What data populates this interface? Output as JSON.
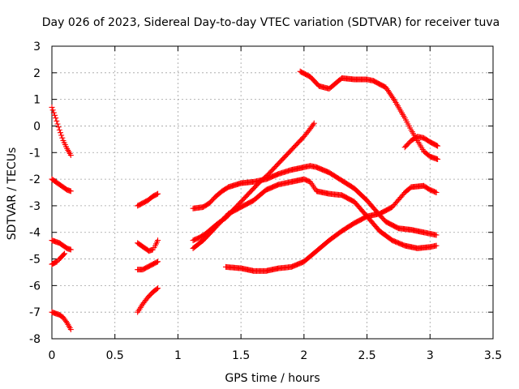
{
  "chart_data": {
    "type": "scatter",
    "title": "Day 026 of 2023, Sidereal Day-to-day VTEC variation (SDTVAR) for receiver tuva",
    "xlabel": "GPS time / hours",
    "ylabel": "SDTVAR / TECUs",
    "xlim": [
      0,
      3.5
    ],
    "ylim": [
      -8,
      3
    ],
    "xticks": [
      0,
      0.5,
      1,
      1.5,
      2,
      2.5,
      3,
      3.5
    ],
    "xtick_labels": [
      "0",
      "0.5",
      "1",
      "1.5",
      "2",
      "2.5",
      "3",
      "3.5"
    ],
    "yticks": [
      -8,
      -7,
      -6,
      -5,
      -4,
      -3,
      -2,
      -1,
      0,
      1,
      2,
      3
    ],
    "ytick_labels": [
      "-8",
      "-7",
      "-6",
      "-5",
      "-4",
      "-3",
      "-2",
      "-1",
      "0",
      "1",
      "2",
      "3"
    ],
    "grid": true,
    "marker": "+",
    "color": "#ff0000",
    "series": [
      {
        "name": "s1",
        "x": [
          0.0,
          0.03,
          0.06,
          0.09,
          0.12,
          0.15
        ],
        "y": [
          0.7,
          0.3,
          -0.15,
          -0.55,
          -0.85,
          -1.1
        ]
      },
      {
        "name": "s2",
        "x": [
          0.0,
          0.03,
          0.06,
          0.09,
          0.12,
          0.15
        ],
        "y": [
          -2.0,
          -2.1,
          -2.2,
          -2.3,
          -2.4,
          -2.45
        ]
      },
      {
        "name": "s3",
        "x": [
          0.0,
          0.03,
          0.06,
          0.09,
          0.12,
          0.15
        ],
        "y": [
          -4.3,
          -4.35,
          -4.4,
          -4.5,
          -4.6,
          -4.65
        ]
      },
      {
        "name": "s4",
        "x": [
          0.0,
          0.02,
          0.04,
          0.06,
          0.08,
          0.1
        ],
        "y": [
          -5.2,
          -5.15,
          -5.1,
          -5.0,
          -4.9,
          -4.8
        ]
      },
      {
        "name": "s5",
        "x": [
          0.0,
          0.03,
          0.06,
          0.09,
          0.12,
          0.15
        ],
        "y": [
          -7.0,
          -7.05,
          -7.1,
          -7.2,
          -7.4,
          -7.65
        ]
      },
      {
        "name": "s6",
        "x": [
          0.68,
          0.72,
          0.76,
          0.8,
          0.84
        ],
        "y": [
          -3.0,
          -2.9,
          -2.8,
          -2.65,
          -2.55
        ]
      },
      {
        "name": "s7",
        "x": [
          0.68,
          0.71,
          0.74,
          0.77,
          0.8,
          0.82,
          0.84
        ],
        "y": [
          -4.4,
          -4.5,
          -4.6,
          -4.7,
          -4.65,
          -4.5,
          -4.3
        ]
      },
      {
        "name": "s8",
        "x": [
          0.68,
          0.72,
          0.76,
          0.8,
          0.84
        ],
        "y": [
          -5.4,
          -5.4,
          -5.3,
          -5.2,
          -5.1
        ]
      },
      {
        "name": "s9",
        "x": [
          0.68,
          0.72,
          0.76,
          0.8,
          0.84
        ],
        "y": [
          -7.0,
          -6.7,
          -6.45,
          -6.25,
          -6.1
        ]
      },
      {
        "name": "s10",
        "x": [
          1.12,
          1.2,
          1.25,
          1.3,
          1.35,
          1.4,
          1.5,
          1.6,
          1.7,
          1.8,
          1.9,
          2.0,
          2.05,
          2.1,
          2.2,
          2.3,
          2.4,
          2.5,
          2.6,
          2.65,
          2.75,
          2.85,
          2.95,
          3.05
        ],
        "y": [
          -3.1,
          -3.05,
          -2.9,
          -2.65,
          -2.45,
          -2.3,
          -2.15,
          -2.1,
          -2.0,
          -1.8,
          -1.65,
          -1.55,
          -1.5,
          -1.55,
          -1.75,
          -2.05,
          -2.35,
          -2.8,
          -3.35,
          -3.6,
          -3.85,
          -3.9,
          -4.0,
          -4.1
        ]
      },
      {
        "name": "s11",
        "x": [
          1.12,
          1.17,
          1.22,
          1.27,
          1.32,
          1.38,
          1.45,
          1.5,
          1.55,
          1.6,
          1.65,
          1.7,
          1.75,
          1.8,
          1.85,
          1.9,
          1.95,
          2.0,
          2.05,
          2.08
        ],
        "y": [
          -4.3,
          -4.2,
          -4.05,
          -3.85,
          -3.65,
          -3.45,
          -3.1,
          -2.85,
          -2.6,
          -2.35,
          -2.1,
          -1.9,
          -1.65,
          -1.4,
          -1.15,
          -0.9,
          -0.65,
          -0.4,
          -0.1,
          0.1
        ]
      },
      {
        "name": "s12",
        "x": [
          1.12,
          1.2,
          1.3,
          1.4,
          1.5,
          1.6,
          1.7,
          1.8,
          1.9,
          2.0,
          2.05,
          2.1,
          2.2,
          2.3,
          2.4,
          2.5,
          2.6,
          2.7,
          2.8,
          2.9,
          3.0,
          3.05
        ],
        "y": [
          -4.6,
          -4.3,
          -3.8,
          -3.3,
          -3.05,
          -2.8,
          -2.4,
          -2.2,
          -2.1,
          -2.0,
          -2.1,
          -2.45,
          -2.55,
          -2.6,
          -2.85,
          -3.4,
          -3.95,
          -4.3,
          -4.5,
          -4.6,
          -4.55,
          -4.5
        ]
      },
      {
        "name": "s13",
        "x": [
          1.38,
          1.5,
          1.6,
          1.7,
          1.8,
          1.9,
          2.0,
          2.1,
          2.2,
          2.3,
          2.4,
          2.5,
          2.6,
          2.7,
          2.8,
          2.85,
          2.95,
          3.0,
          3.05
        ],
        "y": [
          -5.3,
          -5.35,
          -5.45,
          -5.45,
          -5.35,
          -5.3,
          -5.1,
          -4.7,
          -4.3,
          -3.95,
          -3.65,
          -3.4,
          -3.3,
          -3.05,
          -2.5,
          -2.3,
          -2.25,
          -2.4,
          -2.5
        ]
      },
      {
        "name": "s14",
        "x": [
          1.97,
          2.05,
          2.12,
          2.2,
          2.3,
          2.4,
          2.5,
          2.55,
          2.65,
          2.72,
          2.8,
          2.85,
          2.9,
          2.95,
          3.0,
          3.06
        ],
        "y": [
          2.05,
          1.85,
          1.5,
          1.4,
          1.8,
          1.75,
          1.75,
          1.7,
          1.45,
          0.95,
          0.3,
          -0.15,
          -0.55,
          -0.95,
          -1.15,
          -1.25
        ]
      },
      {
        "name": "s15",
        "x": [
          2.8,
          2.85,
          2.9,
          2.95,
          3.0,
          3.06
        ],
        "y": [
          -0.8,
          -0.55,
          -0.4,
          -0.45,
          -0.6,
          -0.75
        ]
      }
    ]
  }
}
